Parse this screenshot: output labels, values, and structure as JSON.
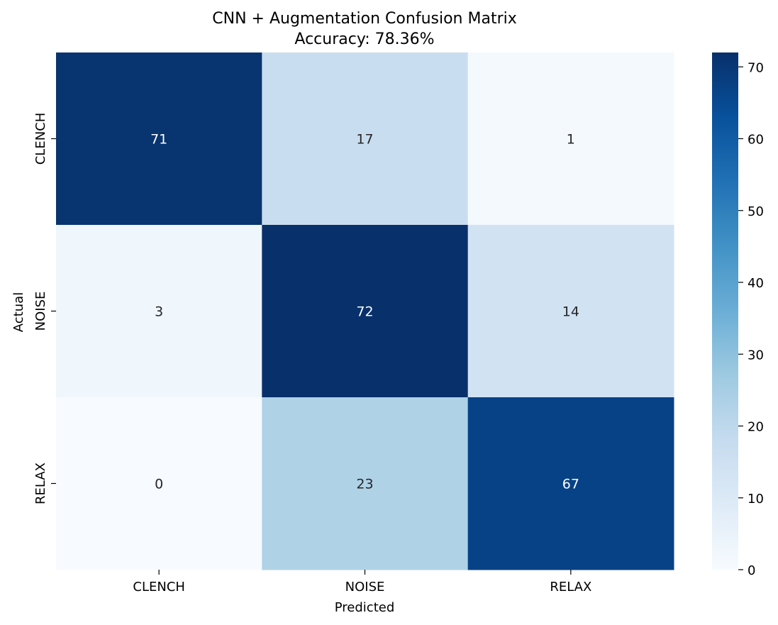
{
  "chart_data": {
    "type": "heatmap",
    "title": "CNN + Augmentation Confusion Matrix",
    "subtitle": "Accuracy: 78.36%",
    "xlabel": "Predicted",
    "ylabel": "Actual",
    "x_categories": [
      "CLENCH",
      "NOISE",
      "RELAX"
    ],
    "y_categories": [
      "CLENCH",
      "NOISE",
      "RELAX"
    ],
    "values": [
      [
        71,
        17,
        1
      ],
      [
        3,
        72,
        14
      ],
      [
        0,
        23,
        67
      ]
    ],
    "colorbar": {
      "colormap": "Blues",
      "range": [
        0,
        72
      ],
      "ticks": [
        0,
        10,
        20,
        30,
        40,
        50,
        60,
        70
      ]
    },
    "grid": false
  }
}
